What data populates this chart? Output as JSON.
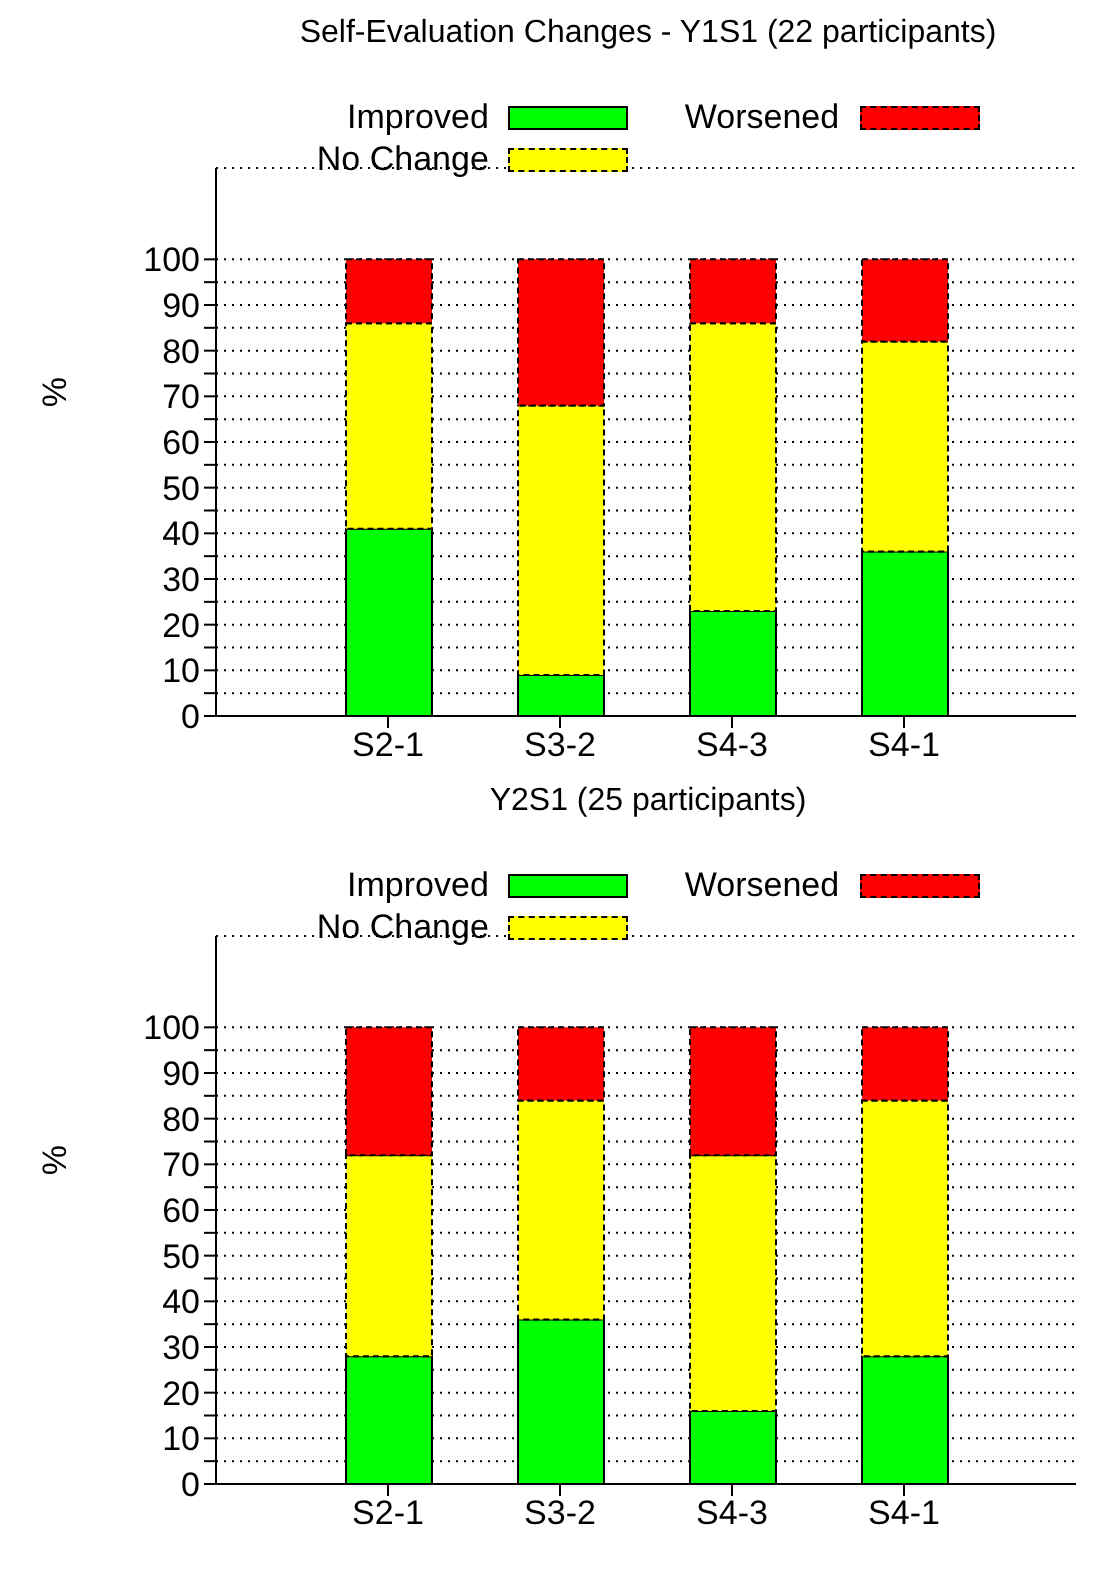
{
  "chart_data": [
    {
      "type": "bar",
      "title": "Self-Evaluation Changes - Y1S1 (22 participants)",
      "ylabel": "%",
      "stacked": true,
      "categories": [
        "S2-1",
        "S3-2",
        "S4-3",
        "S4-1"
      ],
      "series": [
        {
          "name": "Improved",
          "color": "#00ff00",
          "values": [
            41,
            9,
            23,
            36
          ]
        },
        {
          "name": "No Change",
          "color": "#ffff00",
          "values": [
            45,
            59,
            63,
            46
          ]
        },
        {
          "name": "Worsened",
          "color": "#ff0000",
          "values": [
            14,
            32,
            14,
            18
          ]
        }
      ],
      "ylim": [
        0,
        120
      ],
      "yticks": [
        0,
        {
          "value": 5,
          "label": null
        },
        10,
        {
          "value": 15,
          "label": null
        },
        20,
        {
          "value": 25,
          "label": null
        },
        30,
        {
          "value": 35,
          "label": null
        },
        40,
        {
          "value": 45,
          "label": null
        },
        50,
        {
          "value": 55,
          "label": null
        },
        60,
        {
          "value": 65,
          "label": null
        },
        70,
        {
          "value": 75,
          "label": null
        },
        80,
        {
          "value": 85,
          "label": null
        },
        90,
        {
          "value": 95,
          "label": null
        },
        100
      ],
      "grid": "y",
      "legend": "top"
    },
    {
      "type": "bar",
      "title": "Y2S1 (25 participants)",
      "ylabel": "%",
      "stacked": true,
      "categories": [
        "S2-1",
        "S3-2",
        "S4-3",
        "S4-1"
      ],
      "series": [
        {
          "name": "Improved",
          "color": "#00ff00",
          "values": [
            28,
            36,
            16,
            28
          ]
        },
        {
          "name": "No Change",
          "color": "#ffff00",
          "values": [
            44,
            48,
            56,
            56
          ]
        },
        {
          "name": "Worsened",
          "color": "#ff0000",
          "values": [
            28,
            16,
            28,
            16
          ]
        }
      ],
      "ylim": [
        0,
        120
      ],
      "yticks": [
        0,
        {
          "value": 5,
          "label": null
        },
        10,
        {
          "value": 15,
          "label": null
        },
        20,
        {
          "value": 25,
          "label": null
        },
        30,
        {
          "value": 35,
          "label": null
        },
        40,
        {
          "value": 45,
          "label": null
        },
        50,
        {
          "value": 55,
          "label": null
        },
        60,
        {
          "value": 65,
          "label": null
        },
        70,
        {
          "value": 75,
          "label": null
        },
        80,
        {
          "value": 85,
          "label": null
        },
        90,
        {
          "value": 95,
          "label": null
        },
        100
      ],
      "grid": "y",
      "legend": "top"
    }
  ]
}
